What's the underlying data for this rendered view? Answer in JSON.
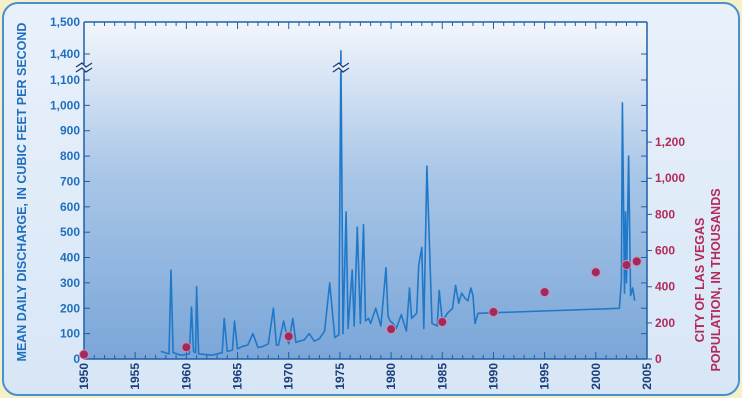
{
  "chart_data": {
    "type": "line",
    "xlabel": "",
    "ylabel_left": "MEAN DAILY DISCHARGE, IN CUBIC FEET PER SECOND",
    "ylabel_right_line1": "CITY OF LAS VEGAS",
    "ylabel_right_line2": "POPULATION, IN THOUSANDS",
    "xlim": [
      1950,
      2005
    ],
    "ylim_left": [
      0,
      1500
    ],
    "ylim_right": [
      0,
      1300
    ],
    "x_ticks": [
      "1950",
      "1955",
      "1960",
      "1965",
      "1970",
      "1975",
      "1980",
      "1985",
      "1990",
      "1995",
      "2000",
      "2005"
    ],
    "y_ticks_left": [
      {
        "v": 0,
        "label": "0"
      },
      {
        "v": 100,
        "label": "100"
      },
      {
        "v": 200,
        "label": "200"
      },
      {
        "v": 300,
        "label": "300"
      },
      {
        "v": 400,
        "label": "400"
      },
      {
        "v": 500,
        "label": "500"
      },
      {
        "v": 600,
        "label": "600"
      },
      {
        "v": 700,
        "label": "700"
      },
      {
        "v": 800,
        "label": "800"
      },
      {
        "v": 900,
        "label": "900"
      },
      {
        "v": 1000,
        "label": "1,000"
      },
      {
        "v": 1100,
        "label": "1,100"
      },
      {
        "v": 1400,
        "label": "1,400"
      },
      {
        "v": 1500,
        "label": "1,500"
      }
    ],
    "y_ticks_right": [
      {
        "v": 0,
        "label": "0"
      },
      {
        "v": 200,
        "label": "200"
      },
      {
        "v": 400,
        "label": "400"
      },
      {
        "v": 600,
        "label": "600"
      },
      {
        "v": 800,
        "label": "800"
      },
      {
        "v": 1000,
        "label": "1,000"
      },
      {
        "v": 1200,
        "label": "1,200"
      }
    ],
    "axis_break": {
      "left_axis_discharge": 1150,
      "spike_year": 1975.1
    },
    "series": [
      {
        "axis": "left",
        "style": "line",
        "color": "#1f78c8",
        "x": [
          1957.5,
          1958.3,
          1958.5,
          1958.7,
          1959.5,
          1960.3,
          1960.5,
          1960.7,
          1960.9,
          1961.0,
          1961.2,
          1962.5,
          1963.5,
          1963.7,
          1964.0,
          1964.5,
          1964.7,
          1965.0,
          1965.5,
          1966.0,
          1966.5,
          1967.0,
          1967.5,
          1968.0,
          1968.5,
          1968.8,
          1969.0,
          1969.5,
          1970.0,
          1970.4,
          1970.7,
          1971.0,
          1971.5,
          1972.0,
          1972.5,
          1973.0,
          1973.5,
          1974.0,
          1974.5,
          1974.9,
          1975.1,
          1975.3,
          1975.6,
          1975.8,
          1976.2,
          1976.4,
          1976.7,
          1977.0,
          1977.3,
          1977.5,
          1977.8,
          1978.0,
          1978.5,
          1979.0,
          1979.5,
          1979.7,
          1979.9,
          1980.2,
          1980.5,
          1981.0,
          1981.5,
          1981.8,
          1982.0,
          1982.5,
          1982.7,
          1983.0,
          1983.2,
          1983.5,
          1984.0,
          1984.5,
          1984.7,
          1985.0,
          1985.5,
          1986.0,
          1986.3,
          1986.6,
          1986.9,
          1987.2,
          1987.5,
          1987.8,
          1988.0,
          1988.2,
          1988.5,
          2002.3,
          2002.5,
          2002.6,
          2002.8,
          2002.9,
          2003.0,
          2003.2,
          2003.4,
          2003.6,
          2003.8
        ],
        "y": [
          30,
          20,
          350,
          25,
          15,
          20,
          205,
          30,
          25,
          285,
          20,
          15,
          25,
          160,
          30,
          35,
          150,
          40,
          50,
          55,
          100,
          45,
          50,
          60,
          200,
          55,
          55,
          150,
          60,
          160,
          65,
          70,
          75,
          100,
          70,
          80,
          110,
          300,
          85,
          95,
          1410,
          100,
          580,
          120,
          350,
          130,
          520,
          140,
          530,
          150,
          160,
          140,
          200,
          130,
          360,
          170,
          150,
          140,
          120,
          175,
          110,
          280,
          160,
          180,
          370,
          440,
          120,
          760,
          140,
          130,
          270,
          150,
          180,
          200,
          290,
          220,
          260,
          240,
          230,
          280,
          250,
          140,
          180,
          200,
          310,
          1010,
          260,
          580,
          300,
          800,
          250,
          280,
          230
        ]
      },
      {
        "axis": "right",
        "style": "marker",
        "color": "#9e2a5e",
        "x": [
          1950,
          1960,
          1970,
          1980,
          1985,
          1990,
          1995,
          2000,
          2003,
          2004
        ],
        "y": [
          25,
          65,
          125,
          165,
          205,
          260,
          370,
          480,
          520,
          540
        ]
      }
    ]
  }
}
